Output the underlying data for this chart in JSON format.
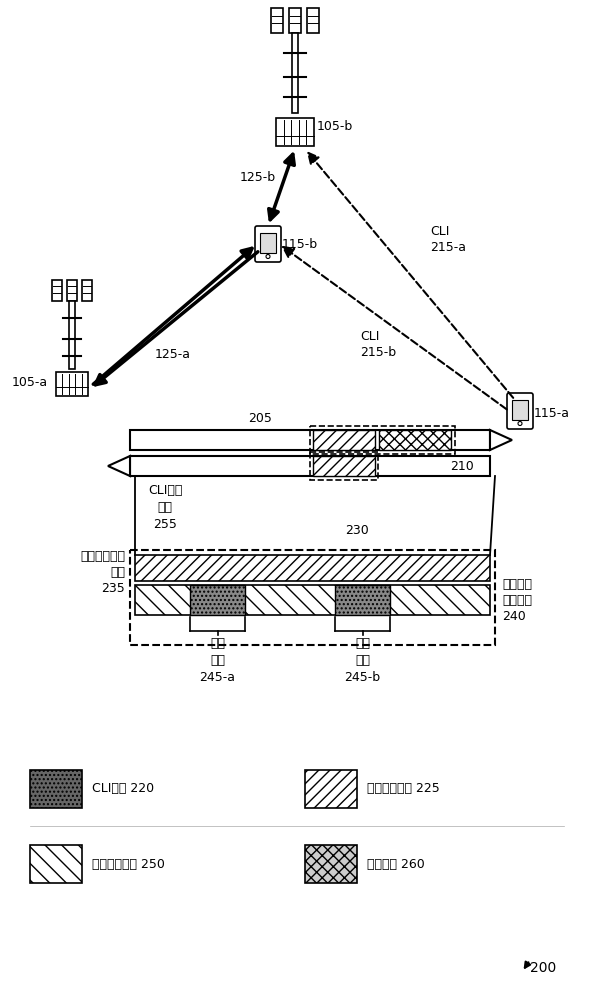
{
  "bg_color": "#ffffff",
  "line_color": "#000000",
  "fig_width": 5.94,
  "fig_height": 10.0,
  "label_200": "200",
  "labels": {
    "105b": "105-b",
    "125b": "125-b",
    "115b": "115-b",
    "CLI_215a": "CLI\n215-a",
    "125a": "125-a",
    "CLI_215b": "CLI\n215-b",
    "205": "205",
    "105a": "105-a",
    "115a": "115-a",
    "210": "210",
    "CLI_ability": "CLI能力\n消息\n255",
    "230": "230",
    "UL_freq": "上行链路频率\n窗口\n235",
    "DL_freq": "下行链路\n频率窗口\n240",
    "time_win_a": "时间\n窗口\n245-a",
    "time_win_b": "时间\n窗口\n245-b",
    "legend_CLI": "CLI测量 220",
    "legend_UL": "上行链路发送 225",
    "legend_DL": "下行链路发送 250",
    "legend_res": "资源分配 260"
  }
}
